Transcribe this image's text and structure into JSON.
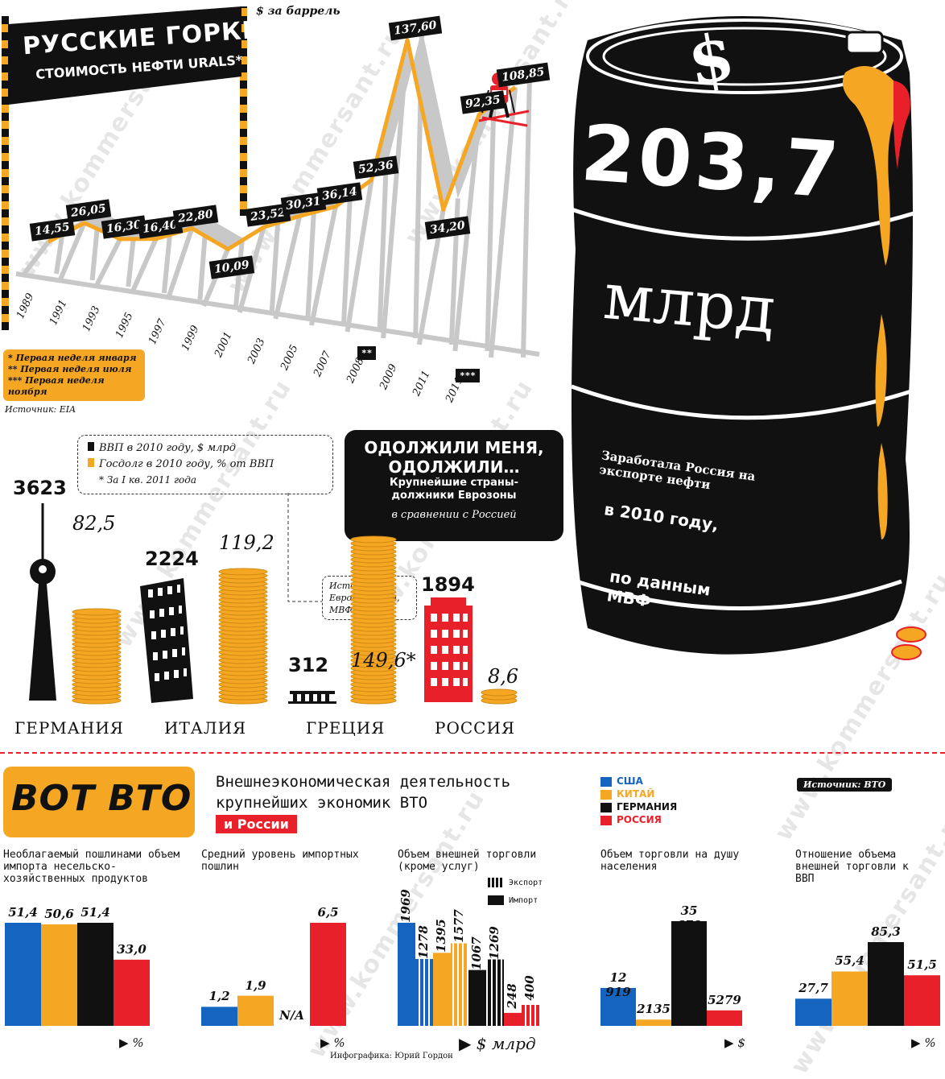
{
  "oil": {
    "title": "РУССКИЕ ГОРКИ",
    "subtitle": "СТОИМОСТЬ НЕФТИ URALS*",
    "unit": "$ за баррель",
    "footnotes": [
      "* Первая неделя января",
      "** Первая неделя июля",
      "*** Первая неделя ноября"
    ],
    "source": "Источник: EIA",
    "marker_2008": "**",
    "marker_2011": "***"
  },
  "barrel": {
    "value": "203,7",
    "unit": "млрд",
    "text1": "Заработала Россия на экспорте нефти",
    "text2": "в 2010 году,",
    "text3": "по данным МВФ"
  },
  "debt": {
    "legend_gdp": "ВВП в 2010 году, $ млрд",
    "legend_debt": "Госдолг в 2010 году, % от ВВП",
    "legend_note": "* За I кв. 2011 года",
    "box_title1": "ОДОЛЖИЛИ МЕНЯ,",
    "box_title2": "ОДОЛЖИЛИ…",
    "box_sub": "Крупнейшие страны-должники Еврозоны",
    "box_it": "в сравнении с Россией",
    "sources": "Источники: Еврокомиссия, МВФ",
    "countries": [
      {
        "name": "ГЕРМАНИЯ",
        "gdp": "3623",
        "debt": "82,5"
      },
      {
        "name": "ИТАЛИЯ",
        "gdp": "2224",
        "debt": "119,2"
      },
      {
        "name": "ГРЕЦИЯ",
        "gdp": "312",
        "debt": "149,6*"
      },
      {
        "name": "РОССИЯ",
        "gdp": "1894",
        "debt": "8,6"
      }
    ]
  },
  "wto": {
    "logo": "ВОТ ВТО",
    "title1": "Внешнеэкономическая деятельность",
    "title2": "крупнейших экономик ВТО",
    "title3": "и России",
    "legend": [
      "США",
      "КИТАЙ",
      "ГЕРМАНИЯ",
      "РОССИЯ"
    ],
    "source": "Источник: ВТО",
    "credit": "Инфографика: Юрий Гордон",
    "panels": {
      "p1": {
        "title": "Необлагаемый пошлинами объем импорта несельско-хозяйственных продуктов",
        "values": [
          "51,4",
          "50,6",
          "51,4",
          "33,0"
        ],
        "unit": "%"
      },
      "p2": {
        "title": "Средний уровень импортных пошлин",
        "values": [
          "1,2",
          "1,9",
          "N/A",
          "6,5"
        ],
        "unit": "%"
      },
      "p3": {
        "title": "Объем внешней торговли (кроме услуг)",
        "export_label": "Экспорт",
        "import_label": "Импорт",
        "values": [
          "1969",
          "1278",
          "1395",
          "1577",
          "1067",
          "1269",
          "248",
          "400"
        ],
        "unit": "$ млрд"
      },
      "p4": {
        "title": "Объем торговли на душу населения",
        "values": [
          "12 919",
          "2135",
          "35 679",
          "5279"
        ],
        "unit": "$"
      },
      "p5": {
        "title": "Отношение объема внешней торговли к ВВП",
        "values": [
          "27,7",
          "55,4",
          "85,3",
          "51,5"
        ],
        "unit": "%"
      }
    }
  },
  "chart_data": [
    {
      "type": "line",
      "title": "РУССКИЕ ГОРКИ",
      "subtitle": "СТОИМОСТЬ НЕФТИ URALS*",
      "ylabel": "$ за баррель",
      "x": [
        "1989",
        "1991",
        "1993",
        "1995",
        "1997",
        "1999",
        "2001",
        "2003",
        "2005",
        "2007",
        "2008",
        "2009",
        "2011",
        "2011"
      ],
      "values": [
        14.55,
        26.05,
        16.3,
        16.4,
        22.8,
        10.09,
        23.52,
        30.31,
        36.14,
        52.36,
        137.6,
        34.2,
        92.35,
        108.85
      ],
      "labels": [
        "14,55",
        "26,05",
        "16,30",
        "16,40",
        "22,80",
        "10,09",
        "23,52",
        "30,31",
        "36,14",
        "52,36",
        "137,60",
        "34,20",
        "92,35",
        "108,85"
      ]
    },
    {
      "type": "bar",
      "title": "ОДОЛЖИЛИ МЕНЯ, ОДОЛЖИЛИ…",
      "categories": [
        "ГЕРМАНИЯ",
        "ИТАЛИЯ",
        "ГРЕЦИЯ",
        "РОССИЯ"
      ],
      "series": [
        {
          "name": "ВВП в 2010 году, $ млрд",
          "values": [
            3623,
            2224,
            312,
            1894
          ]
        },
        {
          "name": "Госдолг в 2010 году, % от ВВП",
          "values": [
            82.5,
            119.2,
            149.6,
            8.6
          ]
        }
      ]
    },
    {
      "type": "bar",
      "title": "Необлагаемый пошлинами объем импорта несельско-хозяйственных продуктов",
      "categories": [
        "США",
        "КИТАЙ",
        "ГЕРМАНИЯ",
        "РОССИЯ"
      ],
      "values": [
        51.4,
        50.6,
        51.4,
        33.0
      ]
    },
    {
      "type": "bar",
      "title": "Средний уровень импортных пошлин",
      "categories": [
        "США",
        "КИТАЙ",
        "ГЕРМАНИЯ",
        "РОССИЯ"
      ],
      "values": [
        1.2,
        1.9,
        null,
        6.5
      ]
    },
    {
      "type": "bar",
      "title": "Объем внешней торговли (кроме услуг)",
      "categories": [
        "США",
        "КИТАЙ",
        "ГЕРМАНИЯ",
        "РОССИЯ"
      ],
      "series": [
        {
          "name": "Экспорт",
          "values": [
            1278,
            1577,
            1269,
            400
          ]
        },
        {
          "name": "Импорт",
          "values": [
            1969,
            1395,
            1067,
            248
          ]
        }
      ]
    },
    {
      "type": "bar",
      "title": "Объем торговли на душу населения",
      "categories": [
        "США",
        "КИТАЙ",
        "ГЕРМАНИЯ",
        "РОССИЯ"
      ],
      "values": [
        12919,
        2135,
        35679,
        5279
      ]
    },
    {
      "type": "bar",
      "title": "Отношение объема внешней торговли к ВВП",
      "categories": [
        "США",
        "КИТАЙ",
        "ГЕРМАНИЯ",
        "РОССИЯ"
      ],
      "values": [
        27.7,
        55.4,
        85.3,
        51.5
      ]
    }
  ],
  "colors": {
    "usa": "#1565c0",
    "china": "#f5a623",
    "germany": "#111111",
    "russia": "#e8202a",
    "orange": "#f5a623",
    "grey": "#c8c8c8"
  }
}
